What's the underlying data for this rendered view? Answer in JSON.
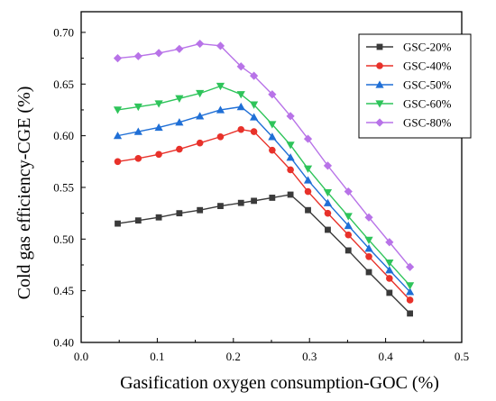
{
  "chart_data": {
    "type": "line",
    "xlabel": "Gasification oxygen consumption-GOC (%)",
    "ylabel": "Cold gas efficiency-CGE (%)",
    "xlim": [
      0.0,
      0.5
    ],
    "ylim": [
      0.4,
      0.72
    ],
    "xticks": [
      0.0,
      0.1,
      0.2,
      0.3,
      0.4,
      0.5
    ],
    "xtick_labels": [
      "0.0",
      "0.1",
      "0.2",
      "0.3",
      "0.4",
      "0.5"
    ],
    "yticks": [
      0.4,
      0.45,
      0.5,
      0.55,
      0.6,
      0.65,
      0.7
    ],
    "ytick_labels": [
      "0.40",
      "0.45",
      "0.50",
      "0.55",
      "0.60",
      "0.65",
      "0.70"
    ],
    "grid": false,
    "legend_position": "top-right",
    "series": [
      {
        "name": "GSC-20%",
        "color": "#3a3a3a",
        "marker": "square",
        "x": [
          0.048,
          0.075,
          0.102,
          0.129,
          0.156,
          0.183,
          0.21,
          0.227,
          0.251,
          0.275,
          0.298,
          0.324,
          0.351,
          0.378,
          0.405,
          0.432
        ],
        "y": [
          0.515,
          0.518,
          0.521,
          0.525,
          0.528,
          0.532,
          0.535,
          0.537,
          0.54,
          0.543,
          0.528,
          0.509,
          0.489,
          0.468,
          0.448,
          0.428
        ]
      },
      {
        "name": "GSC-40%",
        "color": "#e8312a",
        "marker": "circle",
        "x": [
          0.048,
          0.075,
          0.102,
          0.129,
          0.156,
          0.183,
          0.21,
          0.227,
          0.251,
          0.275,
          0.298,
          0.324,
          0.351,
          0.378,
          0.405,
          0.432
        ],
        "y": [
          0.575,
          0.578,
          0.582,
          0.587,
          0.593,
          0.599,
          0.606,
          0.604,
          0.586,
          0.567,
          0.546,
          0.525,
          0.504,
          0.483,
          0.462,
          0.441
        ]
      },
      {
        "name": "GSC-50%",
        "color": "#1f6fd6",
        "marker": "triangle-up",
        "x": [
          0.048,
          0.075,
          0.102,
          0.129,
          0.156,
          0.183,
          0.21,
          0.227,
          0.251,
          0.275,
          0.298,
          0.324,
          0.351,
          0.378,
          0.405,
          0.432
        ],
        "y": [
          0.6,
          0.604,
          0.608,
          0.613,
          0.619,
          0.625,
          0.628,
          0.618,
          0.599,
          0.579,
          0.557,
          0.535,
          0.513,
          0.491,
          0.47,
          0.449
        ]
      },
      {
        "name": "GSC-60%",
        "color": "#2ec45a",
        "marker": "triangle-down",
        "x": [
          0.048,
          0.075,
          0.102,
          0.129,
          0.156,
          0.183,
          0.21,
          0.227,
          0.251,
          0.275,
          0.298,
          0.324,
          0.351,
          0.378,
          0.405,
          0.432
        ],
        "y": [
          0.625,
          0.628,
          0.631,
          0.636,
          0.641,
          0.648,
          0.64,
          0.63,
          0.611,
          0.591,
          0.568,
          0.545,
          0.522,
          0.499,
          0.477,
          0.455
        ]
      },
      {
        "name": "GSC-80%",
        "color": "#b873e8",
        "marker": "diamond",
        "x": [
          0.048,
          0.075,
          0.102,
          0.129,
          0.156,
          0.183,
          0.21,
          0.227,
          0.251,
          0.275,
          0.298,
          0.324,
          0.351,
          0.378,
          0.405,
          0.432
        ],
        "y": [
          0.675,
          0.677,
          0.68,
          0.684,
          0.689,
          0.687,
          0.667,
          0.658,
          0.64,
          0.619,
          0.597,
          0.571,
          0.546,
          0.521,
          0.497,
          0.473
        ]
      }
    ]
  }
}
